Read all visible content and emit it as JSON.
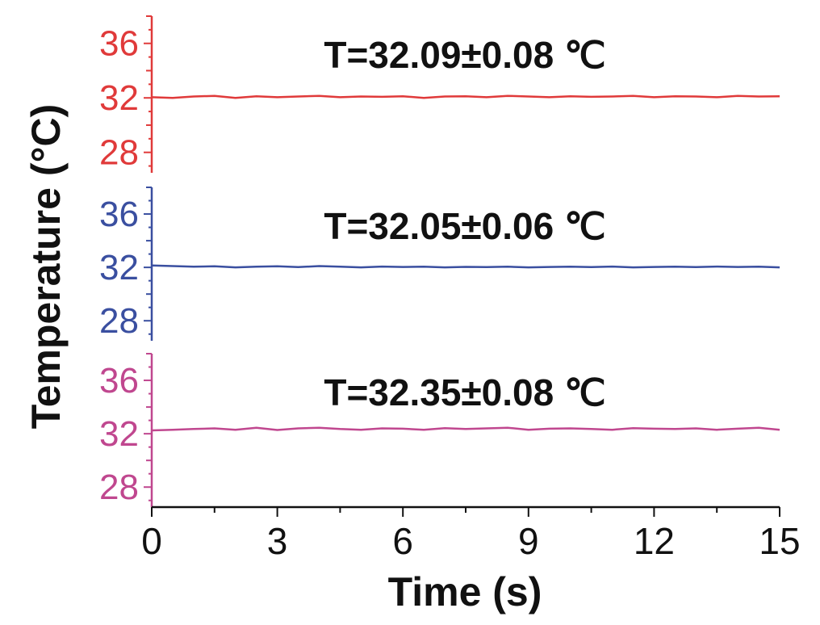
{
  "chart_data": {
    "type": "line",
    "xlabel": "Time (s)",
    "ylabel": "Temperature (°C)",
    "xlim": [
      0,
      15
    ],
    "x_ticks": [
      0,
      3,
      6,
      9,
      12,
      15
    ],
    "x_tick_labels": [
      "0",
      "3",
      "6",
      "9",
      "12",
      "15"
    ],
    "grid": false,
    "panels": [
      {
        "color": "#e03a3a",
        "ylim": [
          26.5,
          38
        ],
        "y_ticks": [
          28,
          32,
          36
        ],
        "y_tick_labels": [
          "28",
          "32",
          "36"
        ],
        "annotation": "T=32.09±0.08 ℃",
        "series": [
          {
            "x": [
              0,
              0.5,
              1,
              1.5,
              2,
              2.5,
              3,
              3.5,
              4,
              4.5,
              5,
              5.5,
              6,
              6.5,
              7,
              7.5,
              8,
              8.5,
              9,
              9.5,
              10,
              10.5,
              11,
              11.5,
              12,
              12.5,
              13,
              13.5,
              14,
              14.5,
              15
            ],
            "y": [
              32.05,
              32.0,
              32.1,
              32.15,
              32.0,
              32.12,
              32.05,
              32.1,
              32.15,
              32.05,
              32.1,
              32.08,
              32.12,
              32.0,
              32.1,
              32.12,
              32.05,
              32.15,
              32.1,
              32.05,
              32.12,
              32.08,
              32.1,
              32.15,
              32.05,
              32.12,
              32.1,
              32.05,
              32.15,
              32.1,
              32.12
            ]
          }
        ]
      },
      {
        "color": "#3a4fa0",
        "ylim": [
          26.5,
          38
        ],
        "y_ticks": [
          28,
          32,
          36
        ],
        "y_tick_labels": [
          "28",
          "32",
          "36"
        ],
        "annotation": "T=32.05±0.06 ℃",
        "series": [
          {
            "x": [
              0,
              0.5,
              1,
              1.5,
              2,
              2.5,
              3,
              3.5,
              4,
              4.5,
              5,
              5.5,
              6,
              6.5,
              7,
              7.5,
              8,
              8.5,
              9,
              9.5,
              10,
              10.5,
              11,
              11.5,
              12,
              12.5,
              13,
              13.5,
              14,
              14.5,
              15
            ],
            "y": [
              32.15,
              32.1,
              32.05,
              32.08,
              32.0,
              32.05,
              32.08,
              32.02,
              32.1,
              32.05,
              32.0,
              32.06,
              32.03,
              32.05,
              32.0,
              32.04,
              32.02,
              32.05,
              32.0,
              32.03,
              32.05,
              32.02,
              32.06,
              32.0,
              32.03,
              32.05,
              32.02,
              32.06,
              32.03,
              32.05,
              32.0
            ]
          }
        ]
      },
      {
        "color": "#c0478f",
        "ylim": [
          26.5,
          38
        ],
        "y_ticks": [
          28,
          32,
          36
        ],
        "y_tick_labels": [
          "28",
          "32",
          "36"
        ],
        "annotation": "T=32.35±0.08 ℃",
        "series": [
          {
            "x": [
              0,
              0.5,
              1,
              1.5,
              2,
              2.5,
              3,
              3.5,
              4,
              4.5,
              5,
              5.5,
              6,
              6.5,
              7,
              7.5,
              8,
              8.5,
              9,
              9.5,
              10,
              10.5,
              11,
              11.5,
              12,
              12.5,
              13,
              13.5,
              14,
              14.5,
              15
            ],
            "y": [
              32.25,
              32.3,
              32.35,
              32.4,
              32.3,
              32.45,
              32.28,
              32.4,
              32.45,
              32.35,
              32.3,
              32.4,
              32.38,
              32.3,
              32.42,
              32.35,
              32.4,
              32.45,
              32.3,
              32.38,
              32.4,
              32.35,
              32.3,
              32.42,
              32.38,
              32.35,
              32.4,
              32.3,
              32.38,
              32.45,
              32.3
            ]
          }
        ]
      }
    ]
  }
}
